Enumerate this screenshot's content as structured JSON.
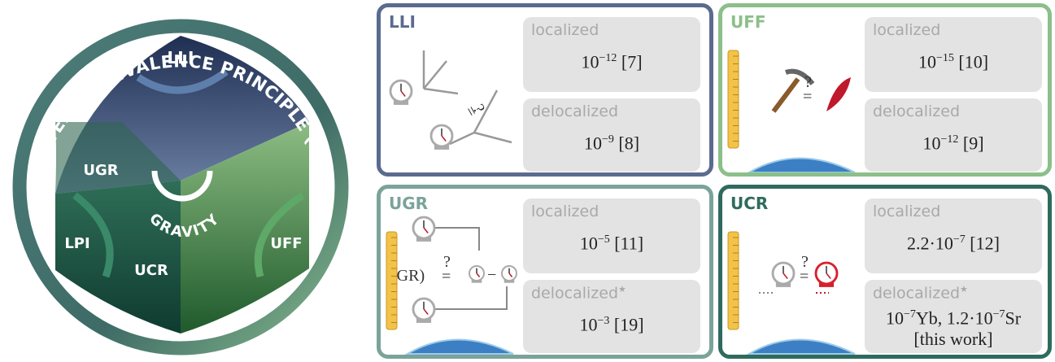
{
  "circle": {
    "title": "EINSTEIN EQUIVALENCE PRINCIPLE (EEP)",
    "regions": {
      "lli": "LLI",
      "ugr": "UGR",
      "lpi": "LPI",
      "ucr": "UCR",
      "uff": "UFF"
    },
    "center": "GRAVITY"
  },
  "panels": [
    {
      "label": "LLI",
      "eq": "=",
      "q": "?",
      "boxes": [
        {
          "label": "localized",
          "value": [
            [
              {
                "text": "10"
              },
              {
                "sup": "−12"
              },
              {
                "text": " [7]"
              }
            ]
          ]
        },
        {
          "label": "delocalized",
          "value": [
            [
              {
                "text": "10"
              },
              {
                "sup": "−9"
              },
              {
                "text": " [8]"
              }
            ]
          ]
        }
      ]
    },
    {
      "label": "UFF",
      "eq": "=",
      "q": "?",
      "boxes": [
        {
          "label": "localized",
          "value": [
            [
              {
                "text": "10"
              },
              {
                "sup": "−15"
              },
              {
                "text": " [10]"
              }
            ]
          ]
        },
        {
          "label": "delocalized",
          "value": [
            [
              {
                "text": "10"
              },
              {
                "sup": "−12"
              },
              {
                "text": " [9]"
              }
            ]
          ]
        }
      ]
    },
    {
      "label": "UGR",
      "eq": "=",
      "q": "?",
      "gr": "(GR)",
      "minus": "−",
      "boxes": [
        {
          "label": "localized",
          "value": [
            [
              {
                "text": "10"
              },
              {
                "sup": "−5"
              },
              {
                "text": " [11]"
              }
            ]
          ]
        },
        {
          "label": "delocalized",
          "star": "★",
          "value": [
            [
              {
                "text": "10"
              },
              {
                "sup": "−3"
              },
              {
                "text": " [19]"
              }
            ]
          ]
        }
      ]
    },
    {
      "label": "UCR",
      "eq": "=",
      "q": "?",
      "boxes": [
        {
          "label": "localized",
          "value": [
            [
              {
                "text": "2.2·10"
              },
              {
                "sup": "−7"
              },
              {
                "text": " [12]"
              }
            ]
          ]
        },
        {
          "label": "delocalized",
          "star": "★",
          "value": [
            [
              {
                "text": "10"
              },
              {
                "sup": "−7"
              },
              {
                "text": "Yb, 1.2·10"
              },
              {
                "sup": "−7"
              },
              {
                "text": "Sr"
              }
            ],
            [
              {
                "text": "[this work]"
              }
            ]
          ]
        }
      ]
    }
  ]
}
